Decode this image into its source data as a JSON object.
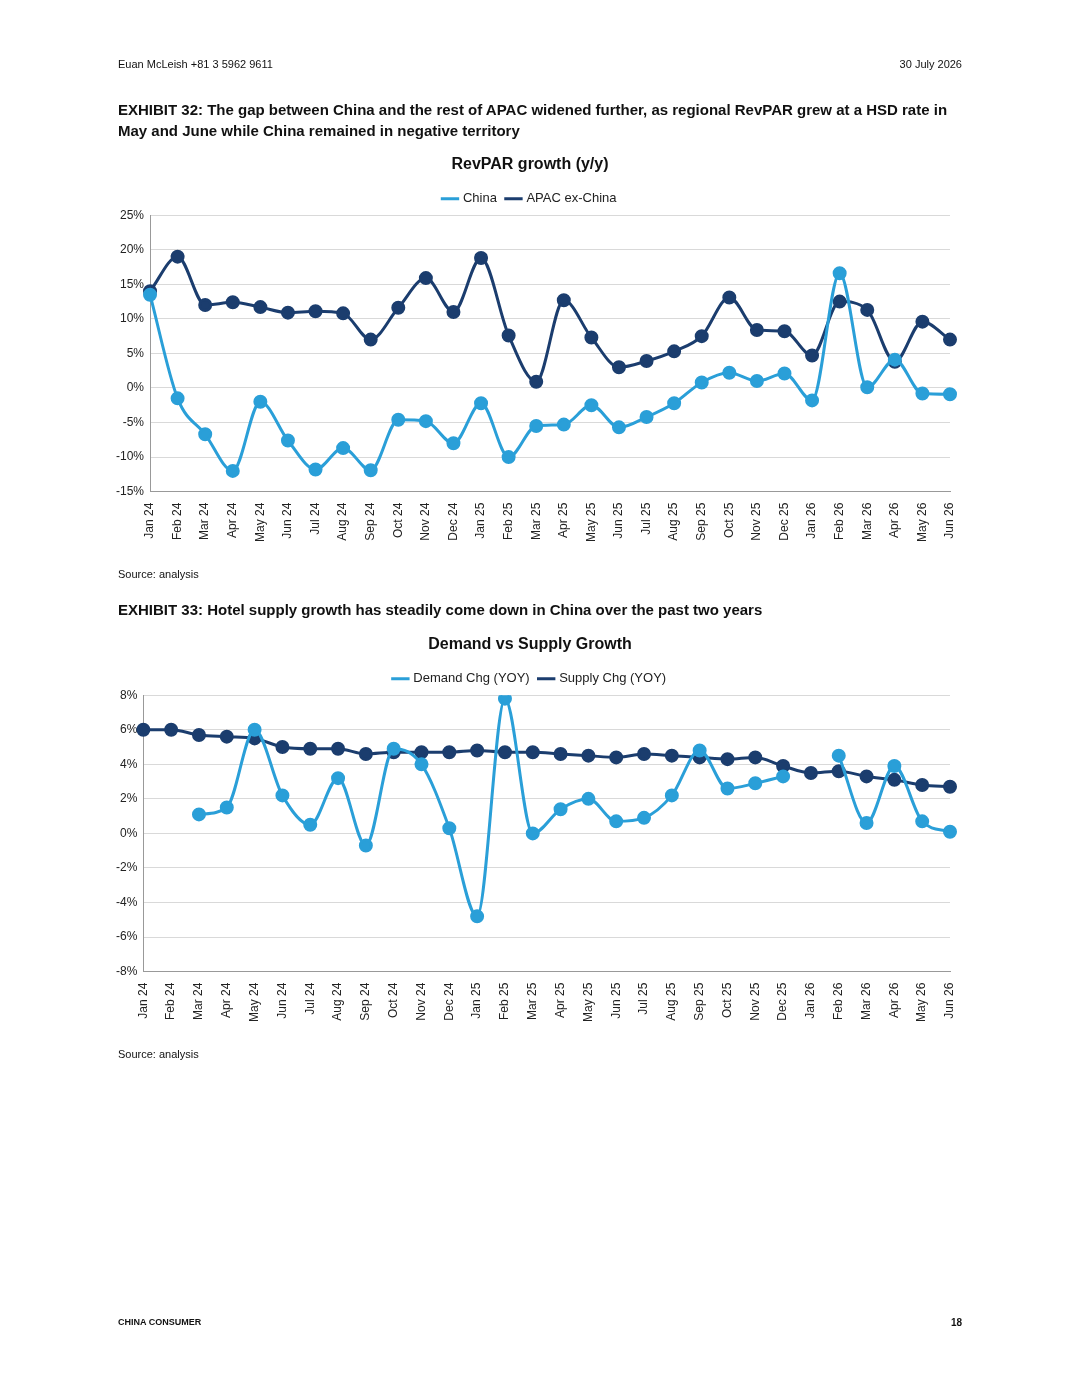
{
  "chart_data": [
    {
      "type": "line",
      "title": "EXHIBIT 32: The gap between China and the rest of APAC widened further, as regional RevPAR grew at a HSD rate in May and June while China remained in negative territory",
      "subtitle": "RevPAR growth (y/y)",
      "categories": [
        "Jan 24",
        "Feb 24",
        "Mar 24",
        "Apr 24",
        "May 24",
        "Jun 24",
        "Jul 24",
        "Aug 24",
        "Sep 24",
        "Oct 24",
        "Nov 24",
        "Dec 24",
        "Jan 25",
        "Feb 25",
        "Mar 25",
        "Apr 25",
        "May 25",
        "Jun 25",
        "Jul 25",
        "Aug 25",
        "Sep 25",
        "Oct 25",
        "Nov 25",
        "Dec 25",
        "Jan 26",
        "Feb 26",
        "Mar 26",
        "Apr 26",
        "May 26",
        "Jun 26"
      ],
      "series": [
        {
          "name": "China",
          "color": "#2a9fd8",
          "values": [
            13.5,
            -1.5,
            -6.7,
            -12,
            -2,
            -7.6,
            -11.8,
            -8.7,
            -11.9,
            -4.6,
            -4.8,
            -8,
            -2.2,
            -10,
            -5.5,
            -5.3,
            -2.5,
            -5.7,
            -4.2,
            -2.2,
            0.8,
            2.2,
            1.0,
            2.1,
            -1.8,
            16.6,
            0.1,
            4.1,
            -0.8,
            -0.9
          ]
        },
        {
          "name": "APAC ex-China",
          "color": "#1b3d6e",
          "values": [
            14,
            19,
            12,
            12.4,
            11.7,
            10.9,
            11.1,
            10.8,
            7,
            11.6,
            15.9,
            11,
            18.8,
            7.6,
            0.9,
            12.7,
            7.3,
            3.0,
            3.9,
            5.3,
            7.5,
            13.1,
            8.4,
            8.2,
            4.7,
            12.5,
            11.3,
            3.8,
            9.6,
            7.0
          ]
        }
      ],
      "ylim": [
        -15,
        25
      ],
      "yticks": [
        {
          "value": -15,
          "label": "-15%"
        },
        {
          "value": -10,
          "label": "-10%"
        },
        {
          "value": -5,
          "label": "-5%"
        },
        {
          "value": 0,
          "label": "0%"
        },
        {
          "value": 5,
          "label": "5%"
        },
        {
          "value": 10,
          "label": "10%"
        },
        {
          "value": 15,
          "label": "15%"
        },
        {
          "value": 20,
          "label": "20%"
        },
        {
          "value": 25,
          "label": "25%"
        }
      ],
      "grid": "y",
      "legend": "top",
      "marker": "circle",
      "line_style": "solid",
      "annotations": [
        "Euan McLeish   +81 3 5962 9611",
        "30 July 2026",
        "Source: analysis"
      ]
    },
    {
      "type": "line",
      "title": "EXHIBIT 33: Hotel supply growth has steadily come down in China over the past two years",
      "subtitle": "Demand vs Supply Growth",
      "categories": [
        "Jan 24",
        "Feb 24",
        "Mar 24",
        "Apr 24",
        "May 24",
        "Jun 24",
        "Jul 24",
        "Aug 24",
        "Sep 24",
        "Oct 24",
        "Nov 24",
        "Dec 24",
        "Jan 25",
        "Feb 25",
        "Mar 25",
        "Apr 25",
        "May 25",
        "Jun 25",
        "Jul 25",
        "Aug 25",
        "Sep 25",
        "Oct 25",
        "Nov 25",
        "Dec 25",
        "Jan 26",
        "Feb 26",
        "Mar 26",
        "Apr 26",
        "May 26",
        "Jun 26"
      ],
      "series": [
        {
          "name": "Demand Chg (YOY)",
          "color": "#2a9fd8",
          "values": [
            null,
            null,
            1.1,
            1.5,
            6.0,
            2.2,
            0.5,
            3.2,
            -0.7,
            4.9,
            4.0,
            0.3,
            -4.8,
            7.8,
            0.0,
            1.4,
            2.0,
            0.7,
            0.9,
            2.2,
            4.8,
            2.6,
            2.9,
            3.3,
            null,
            4.5,
            0.6,
            3.9,
            0.7,
            0.1
          ]
        },
        {
          "name": "Supply Chg (YOY)",
          "color": "#1b3d6e",
          "values": [
            6.0,
            6.0,
            5.7,
            5.6,
            5.5,
            5.0,
            4.9,
            4.9,
            4.6,
            4.7,
            4.7,
            4.7,
            4.8,
            4.7,
            4.7,
            4.6,
            4.5,
            4.4,
            4.6,
            4.5,
            4.4,
            4.3,
            4.4,
            3.9,
            3.5,
            3.6,
            3.3,
            3.1,
            2.8,
            2.7
          ]
        }
      ],
      "ylim": [
        -8,
        8
      ],
      "yticks": [
        {
          "value": -8,
          "label": "-8%"
        },
        {
          "value": -6,
          "label": "-6%"
        },
        {
          "value": -4,
          "label": "-4%"
        },
        {
          "value": -2,
          "label": "-2%"
        },
        {
          "value": 0,
          "label": "0%"
        },
        {
          "value": 2,
          "label": "2%"
        },
        {
          "value": 4,
          "label": "4%"
        },
        {
          "value": 6,
          "label": "6%"
        },
        {
          "value": 8,
          "label": "8%"
        }
      ],
      "grid": "y",
      "legend": "top",
      "marker": "circle",
      "line_style": "solid",
      "annotations": [
        "Source: analysis",
        "CHINA CONSUMER",
        "18"
      ]
    }
  ]
}
